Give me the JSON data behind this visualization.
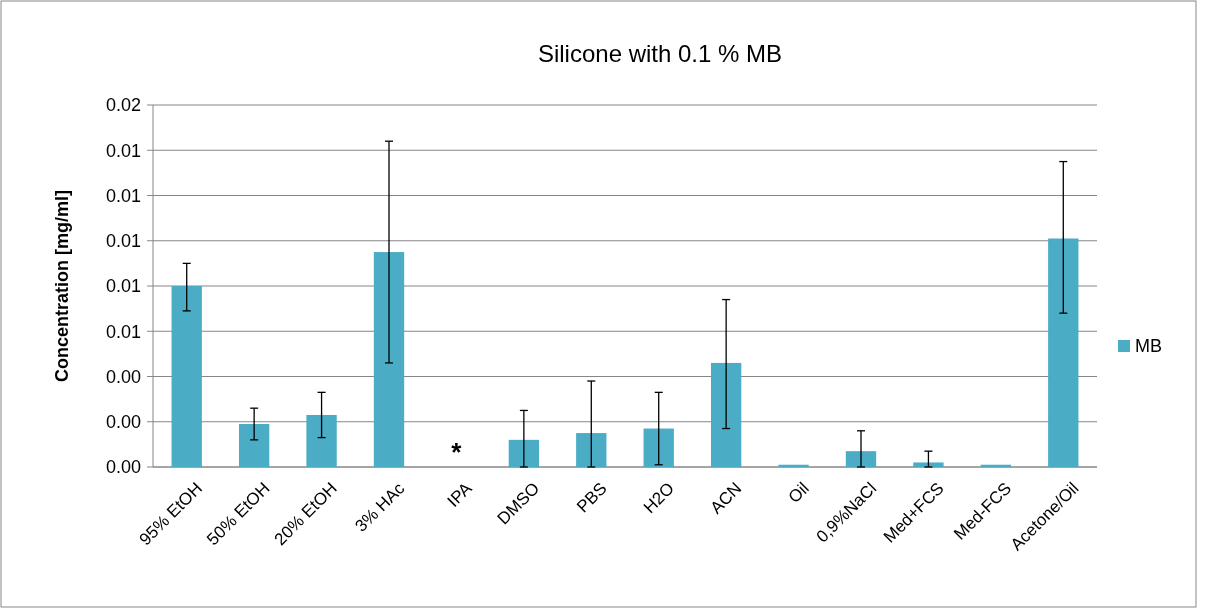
{
  "chart_data": {
    "type": "bar",
    "title": "Silicone with 0.1 % MB",
    "ylabel": "Concentration [mg/ml]",
    "categories": [
      "95% EtOH",
      "50% EtOH",
      "20% EtOH",
      "3% HAc",
      "IPA",
      "DMSO",
      "PBS",
      "H2O",
      "ACN",
      "Oil",
      "0,9%NaCl",
      "Med+FCS",
      "Med-FCS",
      "Acetone/Oil"
    ],
    "series": [
      {
        "name": "MB",
        "color": "#4bacc6",
        "values": [
          0.008,
          0.0019,
          0.0023,
          0.0095,
          null,
          0.0012,
          0.0015,
          0.0017,
          0.0046,
          0.0001,
          0.0007,
          0.0002,
          0.0001,
          0.0101
        ],
        "errors": [
          [
            0.0069,
            0.009
          ],
          [
            0.0012,
            0.0026
          ],
          [
            0.0013,
            0.0033
          ],
          [
            0.0046,
            0.0144
          ],
          null,
          [
            0,
            0.0025
          ],
          [
            0,
            0.0038
          ],
          [
            0.0001,
            0.0033
          ],
          [
            0.0017,
            0.0074
          ],
          null,
          [
            0,
            0.0016
          ],
          [
            0,
            0.0007
          ],
          null,
          [
            0.0068,
            0.0135
          ]
        ]
      }
    ],
    "ylim": [
      0,
      0.016
    ],
    "yticks": [
      {
        "value": 0,
        "label": "0.00"
      },
      {
        "value": 0.002,
        "label": "0.00"
      },
      {
        "value": 0.004,
        "label": "0.00"
      },
      {
        "value": 0.006,
        "label": "0.01"
      },
      {
        "value": 0.008,
        "label": "0.01"
      },
      {
        "value": 0.01,
        "label": "0.01"
      },
      {
        "value": 0.012,
        "label": "0.01"
      },
      {
        "value": 0.014,
        "label": "0.01"
      },
      {
        "value": 0.016,
        "label": "0.02"
      }
    ],
    "grid": "y",
    "legend": "right",
    "annotations": [
      "*"
    ]
  }
}
